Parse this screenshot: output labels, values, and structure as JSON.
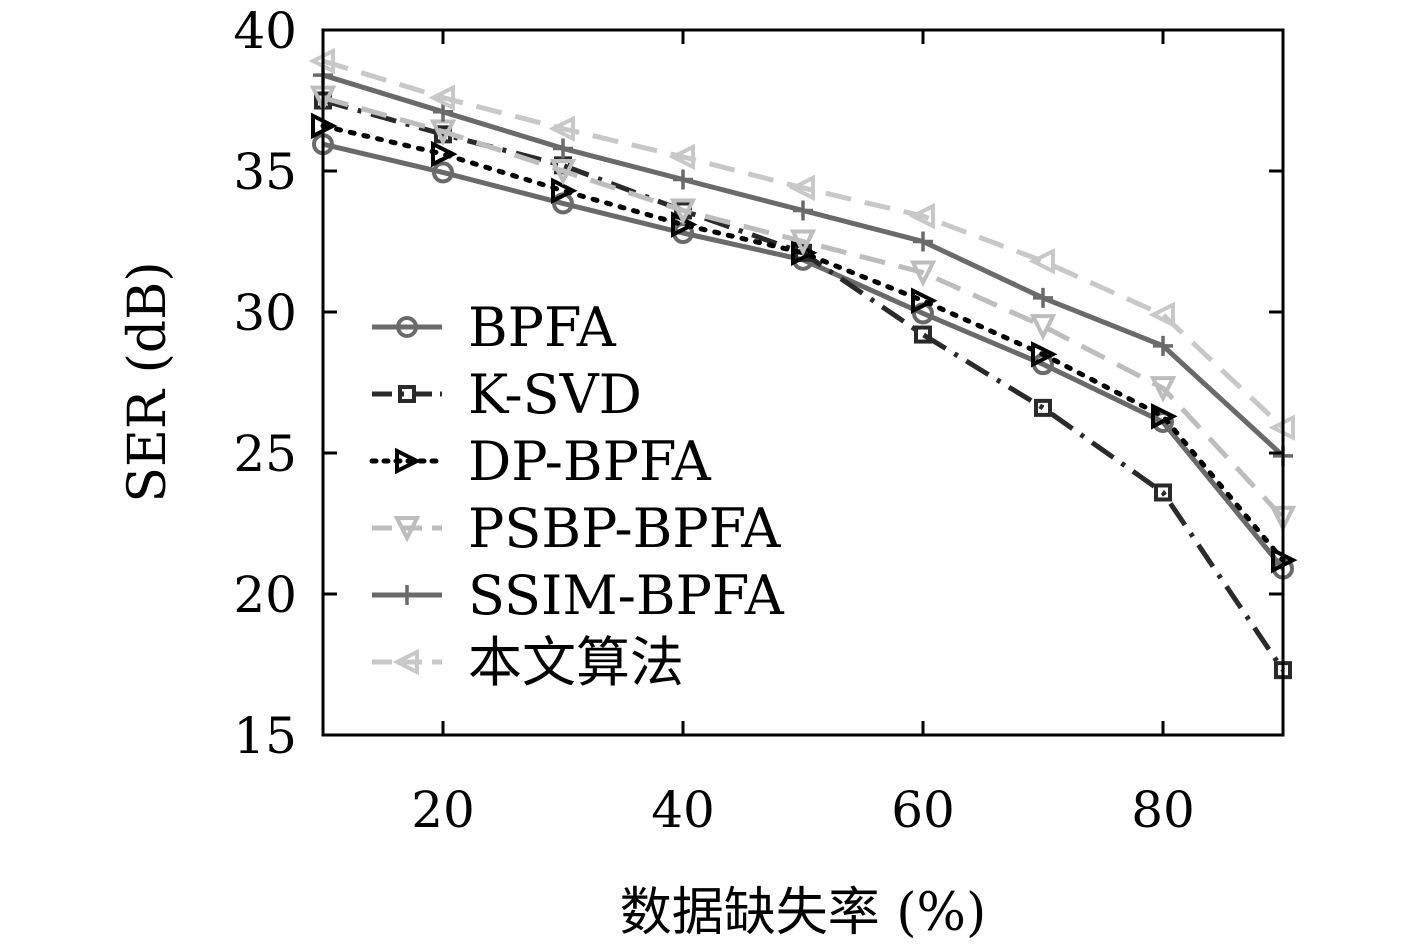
{
  "chart_data": {
    "type": "line",
    "xlabel": "数据缺失率 (%)",
    "ylabel": "SER (dB)",
    "xlim": [
      10,
      90
    ],
    "ylim": [
      15,
      40
    ],
    "xticks": [
      20,
      40,
      60,
      80
    ],
    "yticks": [
      15,
      20,
      25,
      30,
      35,
      40
    ],
    "grid": false,
    "legend_position": "left",
    "x": [
      10,
      20,
      30,
      40,
      50,
      60,
      70,
      80,
      90
    ],
    "series": [
      {
        "name": "BPFA",
        "values": [
          35.95,
          34.95,
          33.85,
          32.8,
          31.85,
          29.95,
          28.15,
          26.1,
          20.9
        ],
        "color": "#6a6a6a",
        "dash": "solid",
        "marker": "circle"
      },
      {
        "name": "K-SVD",
        "values": [
          37.5,
          36.3,
          35.2,
          33.6,
          32.1,
          29.2,
          26.6,
          23.6,
          17.3
        ],
        "color": "#2a2a2a",
        "dash": "dashdot",
        "marker": "square"
      },
      {
        "name": "DP-BPFA",
        "values": [
          36.6,
          35.6,
          34.3,
          33.1,
          32.1,
          30.4,
          28.5,
          26.3,
          21.2
        ],
        "color": "#000000",
        "dash": "dotted",
        "marker": "triangle-right"
      },
      {
        "name": "PSBP-BPFA",
        "values": [
          37.6,
          36.4,
          35.0,
          33.6,
          32.5,
          31.4,
          29.5,
          27.3,
          22.7
        ],
        "color": "#bdbdbd",
        "dash": "dashed",
        "marker": "triangle-down"
      },
      {
        "name": "SSIM-BPFA",
        "values": [
          38.4,
          37.1,
          35.8,
          34.7,
          33.6,
          32.5,
          30.5,
          28.8,
          24.9
        ],
        "color": "#6a6a6a",
        "dash": "solid",
        "marker": "plus"
      },
      {
        "name": "本文算法",
        "values": [
          38.9,
          37.6,
          36.5,
          35.5,
          34.4,
          33.4,
          31.8,
          29.9,
          25.9
        ],
        "color": "#c8c8c8",
        "dash": "dashed",
        "marker": "triangle-left"
      }
    ]
  }
}
